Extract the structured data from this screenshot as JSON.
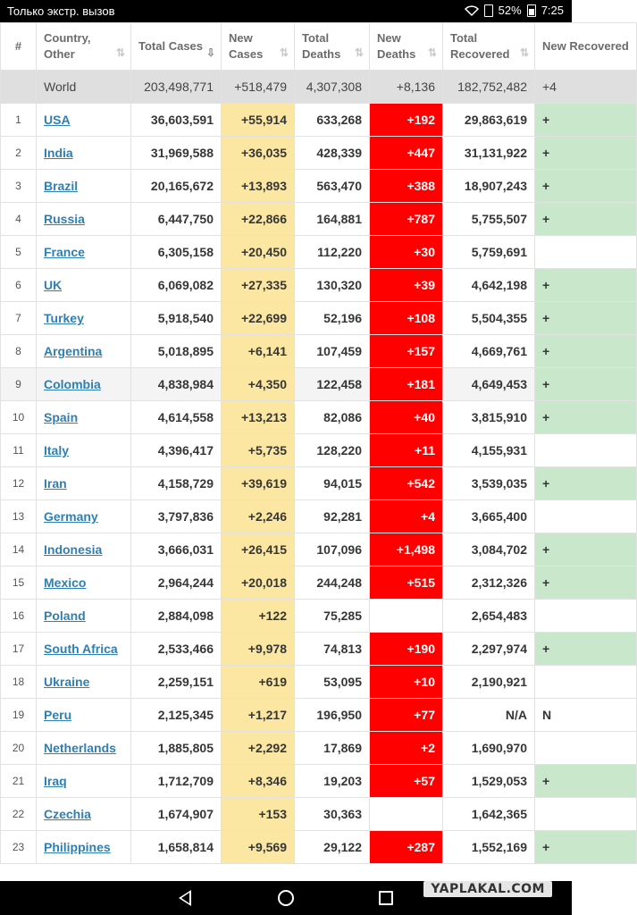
{
  "status_bar": {
    "carrier_text": "Только экстр. вызов",
    "battery": "52%",
    "time": "7:25"
  },
  "table": {
    "headers": {
      "num": "#",
      "country": "Country, Other",
      "total_cases": "Total Cases",
      "new_cases": "New Cases",
      "total_deaths": "Total Deaths",
      "new_deaths": "New Deaths",
      "total_recovered": "Total Recovered",
      "new_recovered": "New Recovered"
    },
    "world": {
      "label": "World",
      "total_cases": "203,498,771",
      "new_cases": "+518,479",
      "total_deaths": "4,307,308",
      "new_deaths": "+8,136",
      "total_recovered": "182,752,482",
      "new_recovered": "+4"
    },
    "rows": [
      {
        "num": "1",
        "country": "USA",
        "total_cases": "36,603,591",
        "new_cases": "+55,914",
        "total_deaths": "633,268",
        "new_deaths": "+192",
        "total_recovered": "29,863,619",
        "new_recovered": "+"
      },
      {
        "num": "2",
        "country": "India",
        "total_cases": "31,969,588",
        "new_cases": "+36,035",
        "total_deaths": "428,339",
        "new_deaths": "+447",
        "total_recovered": "31,131,922",
        "new_recovered": "+"
      },
      {
        "num": "3",
        "country": "Brazil",
        "total_cases": "20,165,672",
        "new_cases": "+13,893",
        "total_deaths": "563,470",
        "new_deaths": "+388",
        "total_recovered": "18,907,243",
        "new_recovered": "+"
      },
      {
        "num": "4",
        "country": "Russia",
        "total_cases": "6,447,750",
        "new_cases": "+22,866",
        "total_deaths": "164,881",
        "new_deaths": "+787",
        "total_recovered": "5,755,507",
        "new_recovered": "+"
      },
      {
        "num": "5",
        "country": "France",
        "total_cases": "6,305,158",
        "new_cases": "+20,450",
        "total_deaths": "112,220",
        "new_deaths": "+30",
        "total_recovered": "5,759,691",
        "new_recovered": ""
      },
      {
        "num": "6",
        "country": "UK",
        "total_cases": "6,069,082",
        "new_cases": "+27,335",
        "total_deaths": "130,320",
        "new_deaths": "+39",
        "total_recovered": "4,642,198",
        "new_recovered": "+"
      },
      {
        "num": "7",
        "country": "Turkey",
        "total_cases": "5,918,540",
        "new_cases": "+22,699",
        "total_deaths": "52,196",
        "new_deaths": "+108",
        "total_recovered": "5,504,355",
        "new_recovered": "+"
      },
      {
        "num": "8",
        "country": "Argentina",
        "total_cases": "5,018,895",
        "new_cases": "+6,141",
        "total_deaths": "107,459",
        "new_deaths": "+157",
        "total_recovered": "4,669,761",
        "new_recovered": "+"
      },
      {
        "num": "9",
        "country": "Colombia",
        "total_cases": "4,838,984",
        "new_cases": "+4,350",
        "total_deaths": "122,458",
        "new_deaths": "+181",
        "total_recovered": "4,649,453",
        "new_recovered": "+"
      },
      {
        "num": "10",
        "country": "Spain",
        "total_cases": "4,614,558",
        "new_cases": "+13,213",
        "total_deaths": "82,086",
        "new_deaths": "+40",
        "total_recovered": "3,815,910",
        "new_recovered": "+"
      },
      {
        "num": "11",
        "country": "Italy",
        "total_cases": "4,396,417",
        "new_cases": "+5,735",
        "total_deaths": "128,220",
        "new_deaths": "+11",
        "total_recovered": "4,155,931",
        "new_recovered": ""
      },
      {
        "num": "12",
        "country": "Iran",
        "total_cases": "4,158,729",
        "new_cases": "+39,619",
        "total_deaths": "94,015",
        "new_deaths": "+542",
        "total_recovered": "3,539,035",
        "new_recovered": "+"
      },
      {
        "num": "13",
        "country": "Germany",
        "total_cases": "3,797,836",
        "new_cases": "+2,246",
        "total_deaths": "92,281",
        "new_deaths": "+4",
        "total_recovered": "3,665,400",
        "new_recovered": ""
      },
      {
        "num": "14",
        "country": "Indonesia",
        "total_cases": "3,666,031",
        "new_cases": "+26,415",
        "total_deaths": "107,096",
        "new_deaths": "+1,498",
        "total_recovered": "3,084,702",
        "new_recovered": "+"
      },
      {
        "num": "15",
        "country": "Mexico",
        "total_cases": "2,964,244",
        "new_cases": "+20,018",
        "total_deaths": "244,248",
        "new_deaths": "+515",
        "total_recovered": "2,312,326",
        "new_recovered": "+"
      },
      {
        "num": "16",
        "country": "Poland",
        "total_cases": "2,884,098",
        "new_cases": "+122",
        "total_deaths": "75,285",
        "new_deaths": "",
        "total_recovered": "2,654,483",
        "new_recovered": ""
      },
      {
        "num": "17",
        "country": "South Africa",
        "total_cases": "2,533,466",
        "new_cases": "+9,978",
        "total_deaths": "74,813",
        "new_deaths": "+190",
        "total_recovered": "2,297,974",
        "new_recovered": "+"
      },
      {
        "num": "18",
        "country": "Ukraine",
        "total_cases": "2,259,151",
        "new_cases": "+619",
        "total_deaths": "53,095",
        "new_deaths": "+10",
        "total_recovered": "2,190,921",
        "new_recovered": ""
      },
      {
        "num": "19",
        "country": "Peru",
        "total_cases": "2,125,345",
        "new_cases": "+1,217",
        "total_deaths": "196,950",
        "new_deaths": "+77",
        "total_recovered": "N/A",
        "new_recovered": "N"
      },
      {
        "num": "20",
        "country": "Netherlands",
        "total_cases": "1,885,805",
        "new_cases": "+2,292",
        "total_deaths": "17,869",
        "new_deaths": "+2",
        "total_recovered": "1,690,970",
        "new_recovered": ""
      },
      {
        "num": "21",
        "country": "Iraq",
        "total_cases": "1,712,709",
        "new_cases": "+8,346",
        "total_deaths": "19,203",
        "new_deaths": "+57",
        "total_recovered": "1,529,053",
        "new_recovered": "+"
      },
      {
        "num": "22",
        "country": "Czechia",
        "total_cases": "1,674,907",
        "new_cases": "+153",
        "total_deaths": "30,363",
        "new_deaths": "",
        "total_recovered": "1,642,365",
        "new_recovered": ""
      },
      {
        "num": "23",
        "country": "Philippines",
        "total_cases": "1,658,814",
        "new_cases": "+9,569",
        "total_deaths": "29,122",
        "new_deaths": "+287",
        "total_recovered": "1,552,169",
        "new_recovered": "+"
      }
    ]
  },
  "watermark": "YAPLAKAL.COM",
  "colors": {
    "new_cases_bg": "#fbe7a1",
    "new_deaths_bg": "#ff0000",
    "new_recovered_bg": "#c9e8cb",
    "link": "#2f7fb1"
  }
}
